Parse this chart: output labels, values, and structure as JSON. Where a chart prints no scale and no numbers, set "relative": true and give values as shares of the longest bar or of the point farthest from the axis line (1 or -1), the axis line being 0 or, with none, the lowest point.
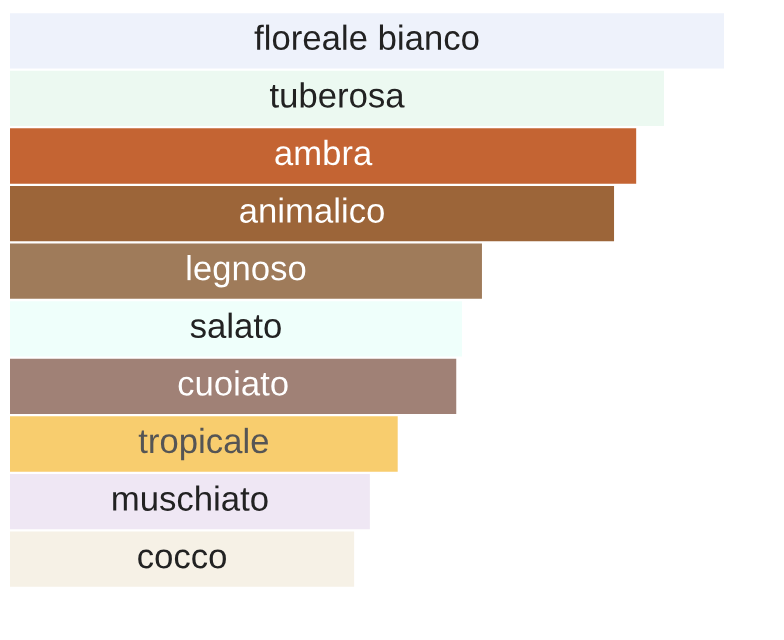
{
  "chart_data": {
    "type": "bar",
    "orientation": "horizontal",
    "relative": true,
    "categories": [
      "floreale bianco",
      "tuberosa",
      "ambra",
      "animalico",
      "legnoso",
      "salato",
      "cuoiato",
      "tropicale",
      "muschiato",
      "cocco"
    ],
    "values": [
      1,
      0.916,
      0.877,
      0.846,
      0.661,
      0.633,
      0.625,
      0.543,
      0.504,
      0.482
    ],
    "colors": [
      "#eef2fb",
      "#ecf9f1",
      "#c46433",
      "#9c6539",
      "#9f7b5a",
      "#effffb",
      "#a08176",
      "#f8cd6e",
      "#efe7f4",
      "#f6f1e6"
    ]
  }
}
